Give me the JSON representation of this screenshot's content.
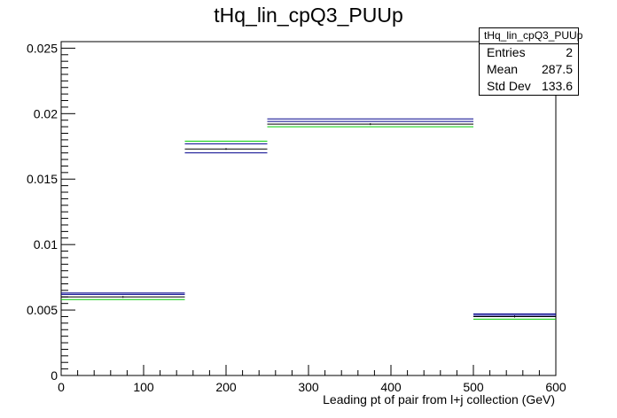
{
  "chart_data": {
    "type": "histogram",
    "title": "tHq_lin_cpQ3_PUUp",
    "xlabel": "Leading pt of pair from l+j collection (GeV)",
    "ylabel": "",
    "xlim": [
      0,
      600
    ],
    "ylim": [
      0,
      0.0255
    ],
    "bin_edges": [
      0,
      150,
      250,
      500,
      600
    ],
    "series": [
      {
        "color": "#00008b",
        "values": [
          0.0062,
          0.0177,
          0.0194,
          0.0046
        ]
      },
      {
        "color": "#000000",
        "values": [
          0.006,
          0.0173,
          0.0192,
          0.0045
        ]
      },
      {
        "color": "#00cc00",
        "values": [
          0.0058,
          0.0179,
          0.019,
          0.0043
        ]
      }
    ],
    "series_offsets": [
      {
        "color": "#00008b",
        "values": [
          0.0063,
          0.017,
          0.0196,
          0.0047
        ]
      }
    ],
    "x_ticks": [
      0,
      100,
      200,
      300,
      400,
      500,
      600
    ],
    "x_tick_labels": [
      "0",
      "100",
      "200",
      "300",
      "400",
      "500",
      "600"
    ],
    "y_ticks": [
      0,
      0.005,
      0.01,
      0.015,
      0.02,
      0.025
    ],
    "y_tick_labels": [
      "0",
      "0.005",
      "0.01",
      "0.015",
      "0.02",
      "0.025"
    ],
    "grid": false
  },
  "stats_box": {
    "title": "tHq_lin_cpQ3_PUUp",
    "entries_label": "Entries",
    "entries_value": "2",
    "mean_label": "Mean",
    "mean_value": "287.5",
    "stddev_label": "Std Dev",
    "stddev_value": "133.6"
  }
}
